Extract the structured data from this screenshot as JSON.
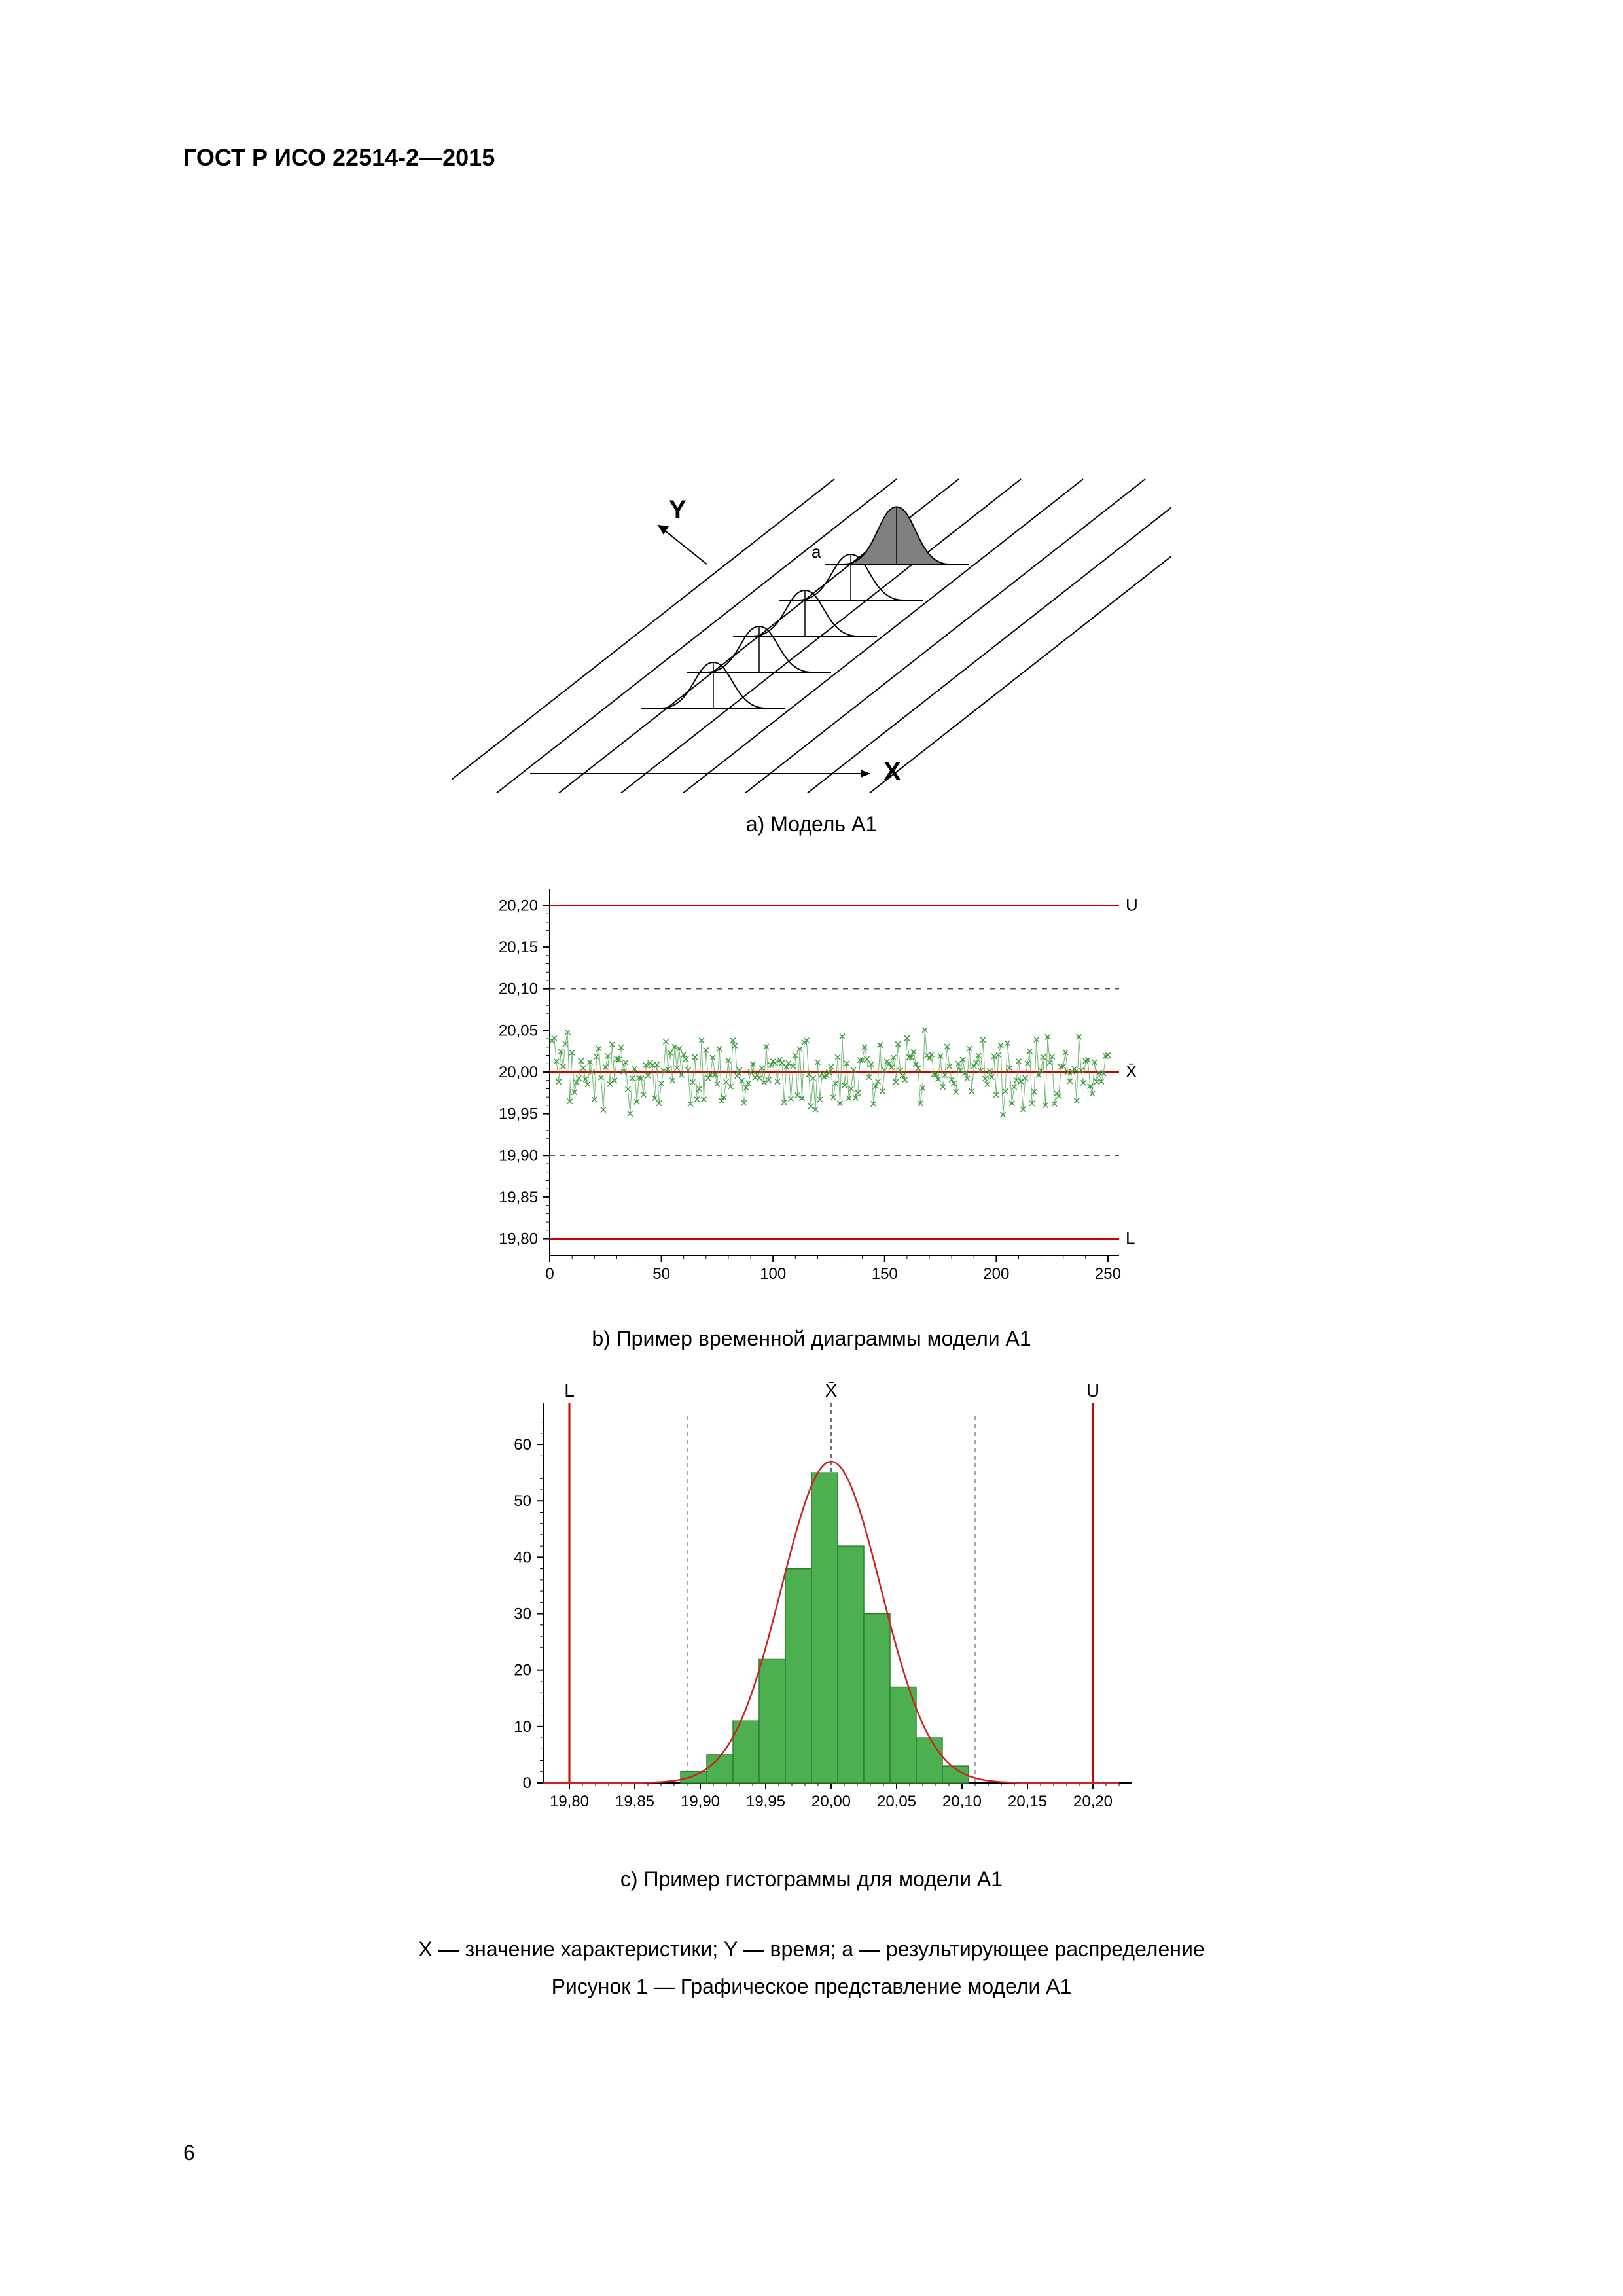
{
  "header": {
    "title": "ГОСТ Р ИСО 22514-2—2015"
  },
  "page_number": "6",
  "figure_a": {
    "caption": "a) Модель A1",
    "axis_x_label": "X",
    "axis_y_label": "Y",
    "annotation_a": "a",
    "n_curves": 5,
    "curve_spacing_x": 70,
    "curve_spacing_y": -55,
    "curve_width": 160,
    "curve_height": 70,
    "stroke_color": "#000000",
    "fill_last": "#808080",
    "background": "#ffffff"
  },
  "figure_b": {
    "caption": "b) Пример временной диаграммы модели A1",
    "type": "scatter",
    "xlim": [
      0,
      255
    ],
    "ylim": [
      19.78,
      20.22
    ],
    "xticks": [
      0,
      50,
      100,
      150,
      200,
      250
    ],
    "yticks": [
      19.8,
      19.85,
      19.9,
      19.95,
      20.0,
      20.05,
      20.1,
      20.15,
      20.2
    ],
    "ytick_labels": [
      "19,80",
      "19,85",
      "19,90",
      "19,95",
      "20,00",
      "20,05",
      "20,10",
      "20,15",
      "20,20"
    ],
    "upper_line": 20.2,
    "lower_line": 19.8,
    "mean_line": 20.0,
    "upper_label": "U",
    "lower_label": "L",
    "mean_label": "X̄",
    "n_points": 250,
    "point_color": "#3a9a3a",
    "point_marker": "x",
    "line_color_limits": "#d00000",
    "line_color_dashes": "#555555",
    "axis_color": "#000000",
    "background": "#ffffff",
    "tick_fontsize": 24
  },
  "figure_c": {
    "caption": "c) Пример гистограммы для модели A1",
    "type": "histogram",
    "xlim": [
      19.78,
      20.22
    ],
    "ylim": [
      0,
      65
    ],
    "xticks": [
      19.8,
      19.85,
      19.9,
      19.95,
      20.0,
      20.05,
      20.1,
      20.15,
      20.2
    ],
    "xtick_labels": [
      "19,80",
      "19,85",
      "19,90",
      "19,95",
      "20,00",
      "20,05",
      "20,10",
      "20,15",
      "20,20"
    ],
    "yticks": [
      0,
      10,
      20,
      30,
      40,
      50,
      60
    ],
    "bar_centers": [
      19.895,
      19.915,
      19.935,
      19.955,
      19.975,
      19.995,
      20.015,
      20.035,
      20.055,
      20.075,
      20.095
    ],
    "bar_values": [
      2,
      5,
      11,
      22,
      38,
      55,
      42,
      30,
      17,
      8,
      3
    ],
    "bar_width": 0.02,
    "bar_color": "#4caf50",
    "bar_border_color": "#2e7d32",
    "curve_color": "#cc2222",
    "curve_mu": 20.0,
    "curve_sigma": 0.038,
    "curve_peak": 57,
    "upper_line": 20.2,
    "lower_line": 19.8,
    "mean_line": 20.0,
    "sigma_lines": [
      19.89,
      20.11
    ],
    "upper_label": "U",
    "lower_label": "L",
    "mean_label": "X̄",
    "line_color_limits": "#d00000",
    "axis_color": "#000000",
    "background": "#ffffff",
    "tick_fontsize": 24
  },
  "legend_text": "X — значение характеристики; Y — время; a — результирующее распределение",
  "figure_title": "Рисунок 1 — Графическое представление модели A1"
}
